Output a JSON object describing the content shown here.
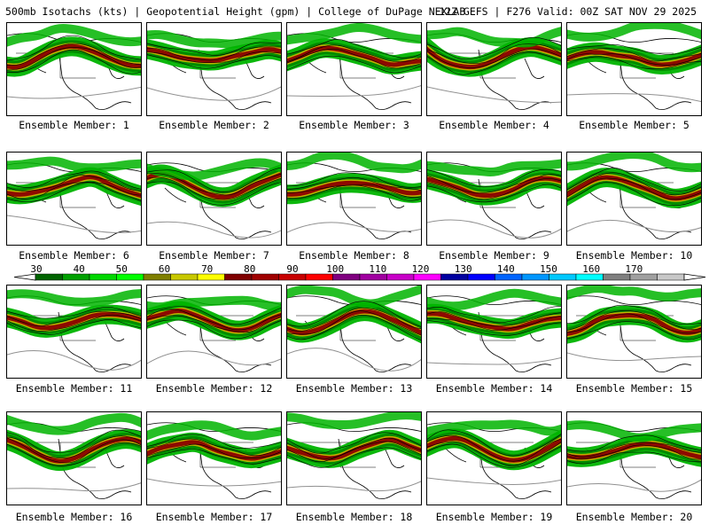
{
  "header": {
    "left_text": "500mb Isotachs (kts) | Geopotential Height (gpm) | College of DuPage NEXLAB",
    "right_text": "12Z GEFS | F276 Valid: 00Z SAT NOV 29 2025"
  },
  "members": [
    "Ensemble Member: 1",
    "Ensemble Member: 2",
    "Ensemble Member: 3",
    "Ensemble Member: 4",
    "Ensemble Member: 5",
    "Ensemble Member: 6",
    "Ensemble Member: 7",
    "Ensemble Member: 8",
    "Ensemble Member: 9",
    "Ensemble Member: 10",
    "Ensemble Member: 11",
    "Ensemble Member: 12",
    "Ensemble Member: 13",
    "Ensemble Member: 14",
    "Ensemble Member: 15",
    "Ensemble Member: 16",
    "Ensemble Member: 17",
    "Ensemble Member: 18",
    "Ensemble Member: 19",
    "Ensemble Member: 20"
  ],
  "legend": {
    "labels": [
      "30",
      "40",
      "50",
      "60",
      "70",
      "80",
      "90",
      "100",
      "110",
      "120",
      "130",
      "140",
      "150",
      "160",
      "170"
    ],
    "colors": [
      "#006400",
      "#00a000",
      "#00d800",
      "#00ff00",
      "#808000",
      "#c8c800",
      "#ffff00",
      "#800000",
      "#a00000",
      "#c80000",
      "#ff0000",
      "#800080",
      "#a000a0",
      "#c800c8",
      "#ff00ff",
      "#0000a0",
      "#0000ff",
      "#0064ff",
      "#0096ff",
      "#00c8ff",
      "#00ffff",
      "#808080",
      "#a0a0a0",
      "#c8c8c8"
    ]
  },
  "colors": {
    "jet_light": "#00b400",
    "jet_mid": "#008800",
    "jet_yellow": "#c8b400",
    "jet_core": "#8b0000",
    "height_contour": "#000000",
    "gray_contour": "#909090"
  }
}
